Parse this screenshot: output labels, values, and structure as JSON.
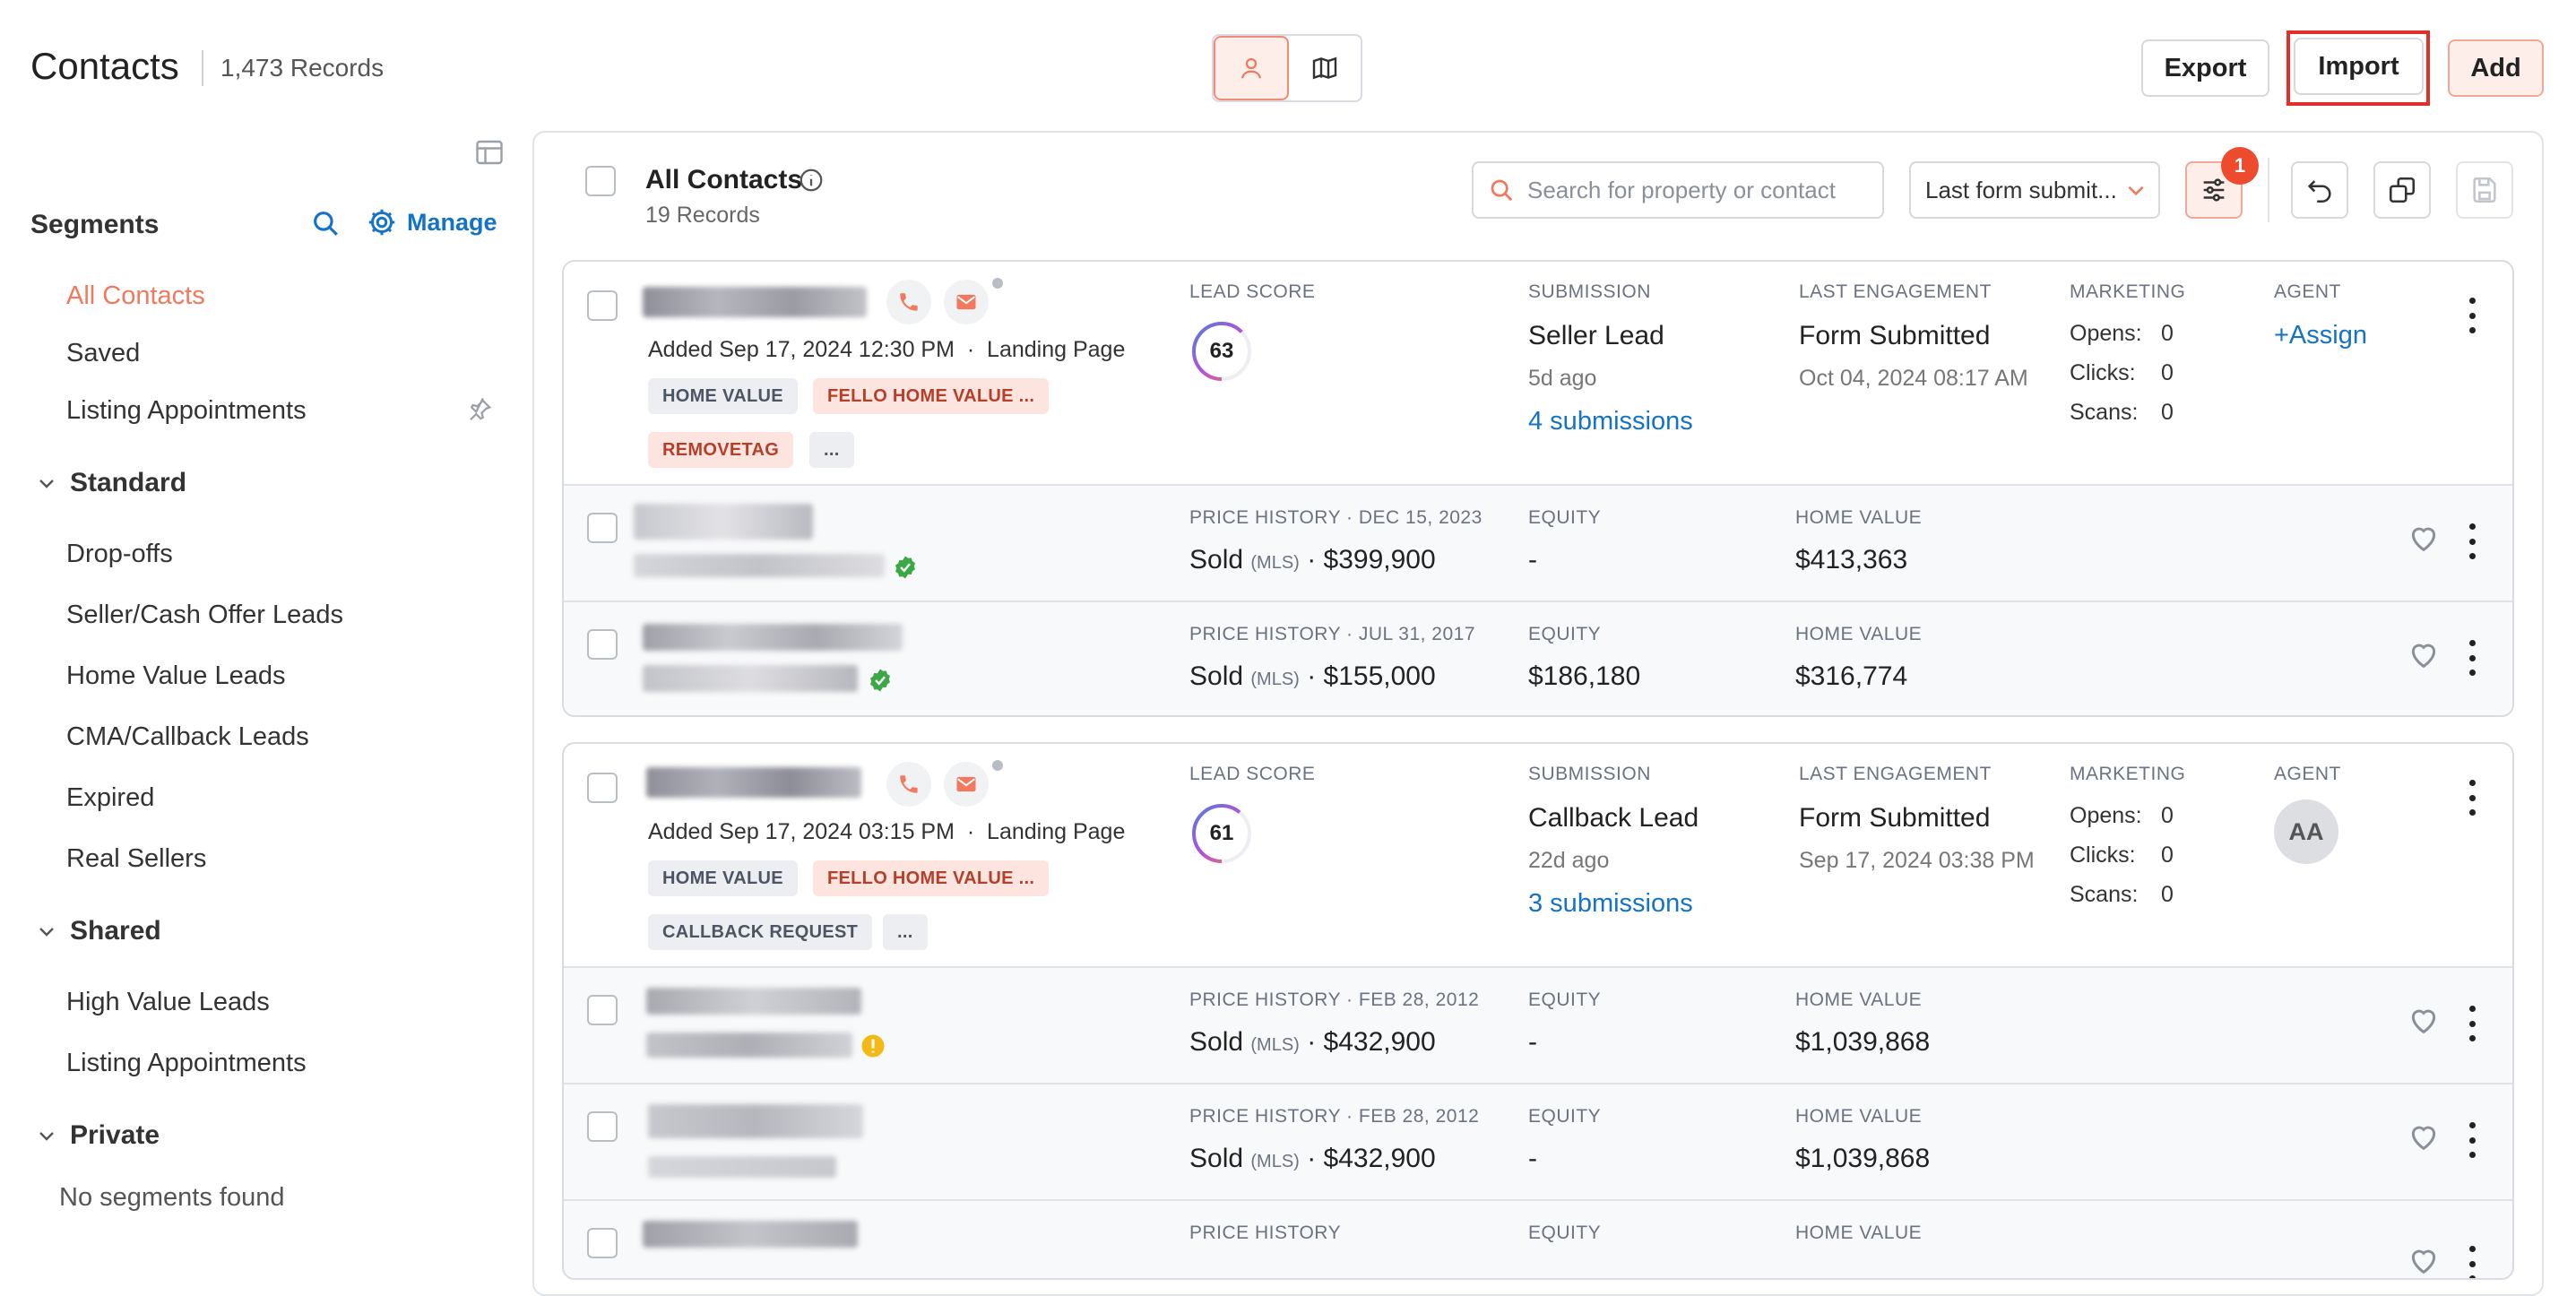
{
  "header": {
    "title": "Contacts",
    "records": "1,473 Records",
    "export_label": "Export",
    "import_label": "Import",
    "add_label": "Add"
  },
  "sidebar": {
    "segments_title": "Segments",
    "manage_label": "Manage",
    "items": [
      "All Contacts",
      "Saved",
      "Listing Appointments"
    ],
    "standard_title": "Standard",
    "standard_items": [
      "Drop-offs",
      "Seller/Cash Offer Leads",
      "Home Value Leads",
      "CMA/Callback Leads",
      "Expired",
      "Real Sellers"
    ],
    "shared_title": "Shared",
    "shared_items": [
      "High Value Leads",
      "Listing Appointments"
    ],
    "private_title": "Private",
    "private_empty": "No segments found"
  },
  "list": {
    "title": "All Contacts",
    "count": "19 Records",
    "search_placeholder": "Search for property or contact",
    "sort_label": "Last form submit...",
    "filter_badge": "1"
  },
  "labels": {
    "lead_score": "LEAD SCORE",
    "submission": "SUBMISSION",
    "last_engagement": "LAST ENGAGEMENT",
    "marketing": "MARKETING",
    "agent": "AGENT",
    "equity": "EQUITY",
    "home_value": "HOME VALUE",
    "opens": "Opens:",
    "clicks": "Clicks:",
    "scans": "Scans:",
    "mls": "(MLS)"
  },
  "cards": [
    {
      "added": "Added Sep 17, 2024 12:30 PM  ·  Landing Page",
      "tags": [
        "HOME VALUE",
        "FELLO HOME VALUE ...",
        "REMOVETAG",
        "..."
      ],
      "score": "63",
      "submission_type": "Seller Lead",
      "submission_ago": "5d ago",
      "submissions_link": "4 submissions",
      "engagement": "Form Submitted",
      "engagement_date": "Oct 04, 2024 08:17 AM",
      "opens": "0",
      "clicks": "0",
      "scans": "0",
      "agent": "+Assign",
      "properties": [
        {
          "price_history": "PRICE HISTORY · DEC 15, 2023",
          "sold": "Sold",
          "price": "· $399,900",
          "equity": "-",
          "home_value": "$413,363"
        },
        {
          "price_history": "PRICE HISTORY · JUL 31, 2017",
          "sold": "Sold",
          "price": "· $155,000",
          "equity": "$186,180",
          "home_value": "$316,774"
        }
      ]
    },
    {
      "added": "Added Sep 17, 2024 03:15 PM  ·  Landing Page",
      "tags": [
        "HOME VALUE",
        "FELLO HOME VALUE ...",
        "CALLBACK REQUEST",
        "..."
      ],
      "score": "61",
      "submission_type": "Callback Lead",
      "submission_ago": "22d ago",
      "submissions_link": "3 submissions",
      "engagement": "Form Submitted",
      "engagement_date": "Sep 17, 2024 03:38 PM",
      "opens": "0",
      "clicks": "0",
      "scans": "0",
      "agent": "AA",
      "properties": [
        {
          "price_history": "PRICE HISTORY · FEB 28, 2012",
          "sold": "Sold",
          "price": "· $432,900",
          "equity": "-",
          "home_value": "$1,039,868"
        },
        {
          "price_history": "PRICE HISTORY · FEB 28, 2012",
          "sold": "Sold",
          "price": "· $432,900",
          "equity": "-",
          "home_value": "$1,039,868"
        },
        {
          "price_history": "PRICE HISTORY",
          "sold": "",
          "price": "",
          "equity": "",
          "home_value": ""
        }
      ]
    }
  ],
  "colors": {
    "accent": "#f2785e",
    "link": "#1473c8",
    "highlight": "#e0302b"
  }
}
